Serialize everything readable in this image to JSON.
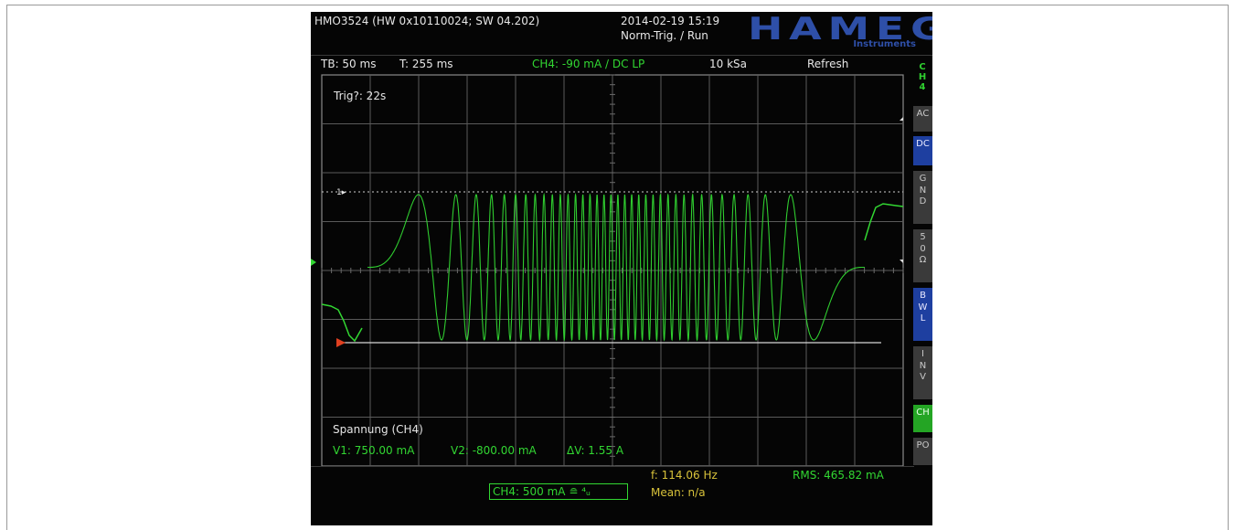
{
  "device": {
    "model_line": "HMO3524 (HW 0x10110024; SW 04.202)",
    "datetime": "2014-02-19 15:19",
    "trigger_state": "Norm-Trig. / Run",
    "logo": "HAMEG",
    "logo_sub": "Instruments"
  },
  "status_bar": {
    "timebase": "TB: 50 ms",
    "time": "T: 255 ms",
    "channel_info": "CH4: -90 mA / DC LP",
    "sample_rate": "10 kSa",
    "mode": "Refresh"
  },
  "plot": {
    "trig_wait": "Trig?: 22s",
    "marker_1": "1▸",
    "measure_title": "Spannung (CH4)",
    "v1": "V1: 750.00 mA",
    "v2": "V2: -800.00 mA",
    "delta_v": "ΔV: 1.55 A",
    "trace_color": "#32d732"
  },
  "bottom": {
    "ch4_scale": "CH4: 500 mA ≘ ⁴ᵤ",
    "frequency": "f: 114.06 Hz",
    "rms": "RMS: 465.82 mA",
    "mean": "Mean: n/a"
  },
  "sidebar": {
    "channel_label": "CH4",
    "buttons": [
      {
        "label": "AC",
        "state": "off"
      },
      {
        "label": "DC",
        "state": "on"
      },
      {
        "label": "GND",
        "state": "off"
      },
      {
        "label": "50 Ω",
        "state": "off"
      },
      {
        "label": "BWL",
        "state": "on"
      },
      {
        "label": "INV",
        "state": "off"
      },
      {
        "label": "CH",
        "state": "green"
      },
      {
        "label": "PO",
        "state": "off"
      }
    ]
  }
}
